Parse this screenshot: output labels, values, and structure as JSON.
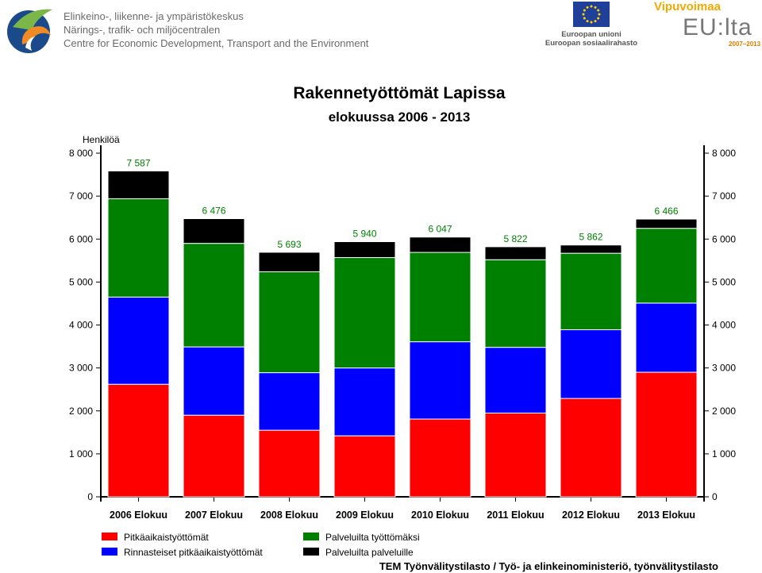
{
  "header": {
    "org_lines": [
      "Elinkeino-, liikenne- ja ympäristökeskus",
      "Närings-, trafik- och miljöcentralen",
      "Centre for Economic Development, Transport and the Environment"
    ],
    "eu_lines": [
      "Euroopan unioni",
      "Euroopan sosiaalirahasto"
    ],
    "vip_title": "Vipuvoimaa",
    "vip_eu": "EU:lta",
    "vip_years": "2007–2013"
  },
  "chart_data": {
    "type": "bar",
    "stacked": true,
    "title": "Rakennetyöttömät Lapissa",
    "subtitle": "elokuussa 2006 - 2013",
    "ylabel": "Henkilöä",
    "ylim": [
      0,
      8000
    ],
    "yticks": [
      0,
      1000,
      2000,
      3000,
      4000,
      5000,
      6000,
      7000,
      8000
    ],
    "ytick_labels": [
      "0",
      "1 000",
      "2 000",
      "3 000",
      "4 000",
      "5 000",
      "6 000",
      "7 000",
      "8 000"
    ],
    "categories": [
      "2006 Elokuu",
      "2007 Elokuu",
      "2008 Elokuu",
      "2009 Elokuu",
      "2010 Elokuu",
      "2011 Elokuu",
      "2012 Elokuu",
      "2013 Elokuu"
    ],
    "series": [
      {
        "name": "Pitkäaikaistyöttömät",
        "color": "#ff0000",
        "values": [
          2620,
          1900,
          1550,
          1420,
          1810,
          1950,
          2290,
          2900
        ]
      },
      {
        "name": "Rinnasteiset pitkäaikaistyöttömät",
        "color": "#0000ff",
        "values": [
          2030,
          1590,
          1340,
          1580,
          1800,
          1530,
          1600,
          1610
        ]
      },
      {
        "name": "Palveluilta työttömäksi",
        "color": "#008000",
        "values": [
          2290,
          2410,
          2350,
          2570,
          2080,
          2040,
          1780,
          1740
        ]
      },
      {
        "name": "Palveluilta palveluille",
        "color": "#000000",
        "values": [
          647,
          576,
          453,
          370,
          357,
          302,
          192,
          216
        ]
      }
    ],
    "totals": [
      7587,
      6476,
      5693,
      5940,
      6047,
      5822,
      5862,
      6466
    ],
    "total_labels": [
      "7 587",
      "6 476",
      "5 693",
      "5 940",
      "6 047",
      "5 822",
      "5 862",
      "6 466"
    ],
    "total_label_color": "#008000",
    "legend_placement": "bottom",
    "grid": false,
    "source": "TEM Työnvälitystilasto / Työ- ja elinkeinoministeriö, työnvälitystilasto"
  }
}
